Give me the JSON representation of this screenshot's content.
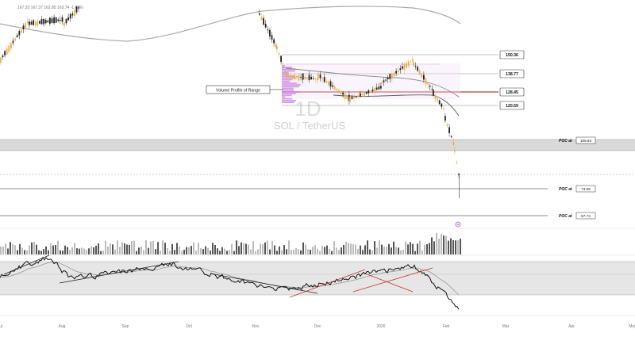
{
  "header": {
    "ohlc_readout": "167.33 167.37 162.85 163.74 -1.89%"
  },
  "watermark": {
    "interval": "1D",
    "symbol": "SOL / TetherUS"
  },
  "annotation": {
    "volume_profile_label": "Volume Profile of Range"
  },
  "colors": {
    "up": "#e8b04a",
    "down": "#222222",
    "ma": "#aaaaaa",
    "profile": "#c77ee0",
    "trend_red": "#c0392b",
    "trend_black": "#222222",
    "band": "#d9d9d9"
  },
  "chart_data": {
    "type": "candlestick",
    "symbol": "SOL / TetherUS",
    "interval": "1D",
    "x_tick_labels": [
      "Jul",
      "Aug",
      "Sep",
      "Oct",
      "Nov",
      "Dec",
      "2026",
      "Feb",
      "Mar",
      "Apr",
      "May"
    ],
    "price_levels": [
      {
        "value": 150.36,
        "label": "150.36"
      },
      {
        "value": 138.77,
        "label": "138.77"
      },
      {
        "value": 128.45,
        "label": "128.45"
      },
      {
        "value": 120.59,
        "label": "120.59"
      }
    ],
    "poc_levels": [
      {
        "label": "POC at",
        "value": "106.93"
      },
      {
        "label": "POC at",
        "value": "73.08"
      },
      {
        "label": "POC at",
        "value": "57.73"
      }
    ],
    "price_range_shown": [
      50,
      200
    ],
    "volume_panel": true,
    "oscillator_panel": {
      "band": [
        30,
        70
      ],
      "mid": 50
    }
  }
}
